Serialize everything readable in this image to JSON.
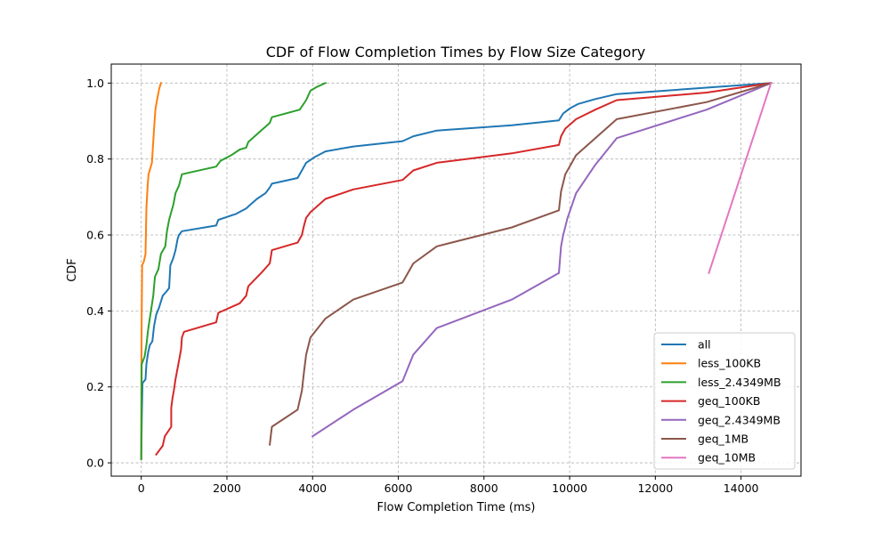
{
  "chart_data": {
    "type": "line",
    "title": "CDF of Flow Completion Times by Flow Size Category",
    "xlabel": "Flow Completion Time (ms)",
    "ylabel": "CDF",
    "xlim": [
      -700,
      15400
    ],
    "ylim": [
      -0.035,
      1.05
    ],
    "xticks": [
      0,
      2000,
      4000,
      6000,
      8000,
      10000,
      12000,
      14000
    ],
    "yticks": [
      0.0,
      0.2,
      0.4,
      0.6,
      0.8,
      1.0
    ],
    "xtick_labels": [
      "0",
      "2000",
      "4000",
      "6000",
      "8000",
      "10000",
      "12000",
      "14000"
    ],
    "ytick_labels": [
      "0.0",
      "0.2",
      "0.4",
      "0.6",
      "0.8",
      "1.0"
    ],
    "grid": true,
    "legend_position": "lower-right",
    "series": [
      {
        "name": "all",
        "color": "#1f77b4",
        "points": [
          [
            0,
            0.01
          ],
          [
            15,
            0.13
          ],
          [
            30,
            0.21
          ],
          [
            100,
            0.22
          ],
          [
            120,
            0.26
          ],
          [
            160,
            0.29
          ],
          [
            200,
            0.31
          ],
          [
            260,
            0.32
          ],
          [
            300,
            0.36
          ],
          [
            350,
            0.39
          ],
          [
            420,
            0.41
          ],
          [
            500,
            0.44
          ],
          [
            580,
            0.45
          ],
          [
            650,
            0.46
          ],
          [
            680,
            0.52
          ],
          [
            750,
            0.54
          ],
          [
            800,
            0.56
          ],
          [
            850,
            0.59
          ],
          [
            880,
            0.6
          ],
          [
            950,
            0.61
          ],
          [
            1750,
            0.625
          ],
          [
            1800,
            0.64
          ],
          [
            2200,
            0.655
          ],
          [
            2450,
            0.67
          ],
          [
            2550,
            0.68
          ],
          [
            2700,
            0.695
          ],
          [
            2900,
            0.71
          ],
          [
            3000,
            0.725
          ],
          [
            3050,
            0.735
          ],
          [
            3650,
            0.75
          ],
          [
            3750,
            0.77
          ],
          [
            3850,
            0.79
          ],
          [
            4050,
            0.805
          ],
          [
            4300,
            0.82
          ],
          [
            4950,
            0.833
          ],
          [
            6100,
            0.847
          ],
          [
            6350,
            0.86
          ],
          [
            6900,
            0.875
          ],
          [
            8650,
            0.889
          ],
          [
            9750,
            0.902
          ],
          [
            9850,
            0.92
          ],
          [
            10000,
            0.933
          ],
          [
            10200,
            0.945
          ],
          [
            10600,
            0.958
          ],
          [
            11100,
            0.971
          ],
          [
            14700,
            1.0
          ]
        ]
      },
      {
        "name": "less_100KB",
        "color": "#ff7f0e",
        "points": [
          [
            0,
            0.01
          ],
          [
            5,
            0.25
          ],
          [
            10,
            0.38
          ],
          [
            20,
            0.52
          ],
          [
            60,
            0.53
          ],
          [
            100,
            0.55
          ],
          [
            120,
            0.67
          ],
          [
            150,
            0.73
          ],
          [
            170,
            0.76
          ],
          [
            250,
            0.79
          ],
          [
            300,
            0.88
          ],
          [
            330,
            0.93
          ],
          [
            360,
            0.95
          ],
          [
            420,
            0.985
          ],
          [
            460,
            1.0
          ]
        ]
      },
      {
        "name": "less_2.4349MB",
        "color": "#2ca02c",
        "points": [
          [
            0,
            0.01
          ],
          [
            10,
            0.26
          ],
          [
            80,
            0.28
          ],
          [
            120,
            0.31
          ],
          [
            160,
            0.35
          ],
          [
            200,
            0.38
          ],
          [
            280,
            0.44
          ],
          [
            320,
            0.49
          ],
          [
            400,
            0.51
          ],
          [
            460,
            0.55
          ],
          [
            560,
            0.57
          ],
          [
            600,
            0.61
          ],
          [
            650,
            0.64
          ],
          [
            700,
            0.66
          ],
          [
            750,
            0.68
          ],
          [
            800,
            0.71
          ],
          [
            880,
            0.73
          ],
          [
            950,
            0.76
          ],
          [
            1750,
            0.78
          ],
          [
            1850,
            0.795
          ],
          [
            2100,
            0.81
          ],
          [
            2300,
            0.825
          ],
          [
            2450,
            0.83
          ],
          [
            2500,
            0.845
          ],
          [
            2700,
            0.865
          ],
          [
            3000,
            0.895
          ],
          [
            3050,
            0.91
          ],
          [
            3700,
            0.93
          ],
          [
            3850,
            0.955
          ],
          [
            3950,
            0.98
          ],
          [
            4100,
            0.99
          ],
          [
            4300,
            1.0
          ]
        ]
      },
      {
        "name": "geq_100KB",
        "color": "#d62728",
        "points": [
          [
            350,
            0.022
          ],
          [
            500,
            0.045
          ],
          [
            550,
            0.07
          ],
          [
            700,
            0.095
          ],
          [
            700,
            0.145
          ],
          [
            730,
            0.17
          ],
          [
            760,
            0.19
          ],
          [
            800,
            0.22
          ],
          [
            850,
            0.25
          ],
          [
            900,
            0.28
          ],
          [
            930,
            0.3
          ],
          [
            950,
            0.33
          ],
          [
            1000,
            0.345
          ],
          [
            1750,
            0.37
          ],
          [
            1800,
            0.395
          ],
          [
            2300,
            0.42
          ],
          [
            2450,
            0.44
          ],
          [
            2500,
            0.465
          ],
          [
            2800,
            0.5
          ],
          [
            3000,
            0.525
          ],
          [
            3050,
            0.56
          ],
          [
            3650,
            0.58
          ],
          [
            3750,
            0.6
          ],
          [
            3800,
            0.625
          ],
          [
            3850,
            0.645
          ],
          [
            3950,
            0.66
          ],
          [
            4100,
            0.675
          ],
          [
            4300,
            0.695
          ],
          [
            4950,
            0.72
          ],
          [
            6100,
            0.745
          ],
          [
            6350,
            0.77
          ],
          [
            6900,
            0.79
          ],
          [
            8650,
            0.815
          ],
          [
            9750,
            0.837
          ],
          [
            9800,
            0.86
          ],
          [
            9900,
            0.88
          ],
          [
            10150,
            0.905
          ],
          [
            10600,
            0.93
          ],
          [
            11100,
            0.955
          ],
          [
            13200,
            0.975
          ],
          [
            14700,
            1.0
          ]
        ]
      },
      {
        "name": "geq_2.4349MB",
        "color": "#9467bd",
        "points": [
          [
            4000,
            0.07
          ],
          [
            4950,
            0.14
          ],
          [
            6100,
            0.215
          ],
          [
            6350,
            0.285
          ],
          [
            6900,
            0.355
          ],
          [
            8650,
            0.43
          ],
          [
            9750,
            0.5
          ],
          [
            9800,
            0.57
          ],
          [
            9850,
            0.6
          ],
          [
            9950,
            0.645
          ],
          [
            10150,
            0.71
          ],
          [
            10600,
            0.785
          ],
          [
            11100,
            0.855
          ],
          [
            13200,
            0.93
          ],
          [
            14700,
            1.0
          ]
        ]
      },
      {
        "name": "geq_1MB",
        "color": "#8c564b",
        "points": [
          [
            3000,
            0.048
          ],
          [
            3050,
            0.095
          ],
          [
            3650,
            0.14
          ],
          [
            3750,
            0.19
          ],
          [
            3800,
            0.24
          ],
          [
            3850,
            0.285
          ],
          [
            3950,
            0.33
          ],
          [
            4300,
            0.38
          ],
          [
            4950,
            0.43
          ],
          [
            6100,
            0.475
          ],
          [
            6350,
            0.525
          ],
          [
            6900,
            0.57
          ],
          [
            8650,
            0.62
          ],
          [
            9750,
            0.665
          ],
          [
            9800,
            0.715
          ],
          [
            9900,
            0.76
          ],
          [
            10150,
            0.81
          ],
          [
            10600,
            0.855
          ],
          [
            11100,
            0.905
          ],
          [
            13200,
            0.95
          ],
          [
            14700,
            1.0
          ]
        ]
      },
      {
        "name": "geq_10MB",
        "color": "#e377c2",
        "points": [
          [
            13250,
            0.5
          ],
          [
            14700,
            1.0
          ]
        ]
      }
    ]
  }
}
